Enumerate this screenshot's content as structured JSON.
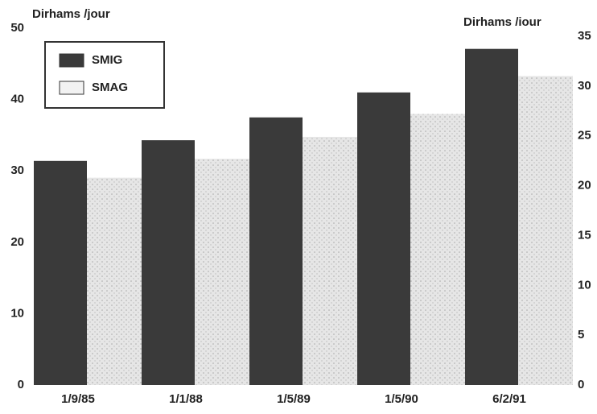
{
  "chart_data": {
    "type": "bar",
    "y_label": "Dirhams /jour",
    "y2_label": "Dirhams /iour",
    "categories": [
      "1/9/85",
      "1/1/88",
      "1/5/89",
      "1/5/90",
      "6/2/91"
    ],
    "series": [
      {
        "name": "SMIG",
        "color": "#3a3a3a",
        "values": [
          31.4,
          34.3,
          37.5,
          41,
          47.1
        ]
      },
      {
        "name": "SMAG",
        "color": "#dcdcdc",
        "axis": "y2",
        "values": [
          20.8,
          22.7,
          24.9,
          27.2,
          31
        ]
      }
    ],
    "ylim": [
      0,
      50
    ],
    "yticks": [
      0,
      10,
      20,
      30,
      40,
      50
    ],
    "y2lim": [
      0,
      35
    ],
    "y2ticks": [
      0,
      5,
      10,
      15,
      20,
      25,
      30,
      35
    ],
    "legend": "top-left"
  }
}
